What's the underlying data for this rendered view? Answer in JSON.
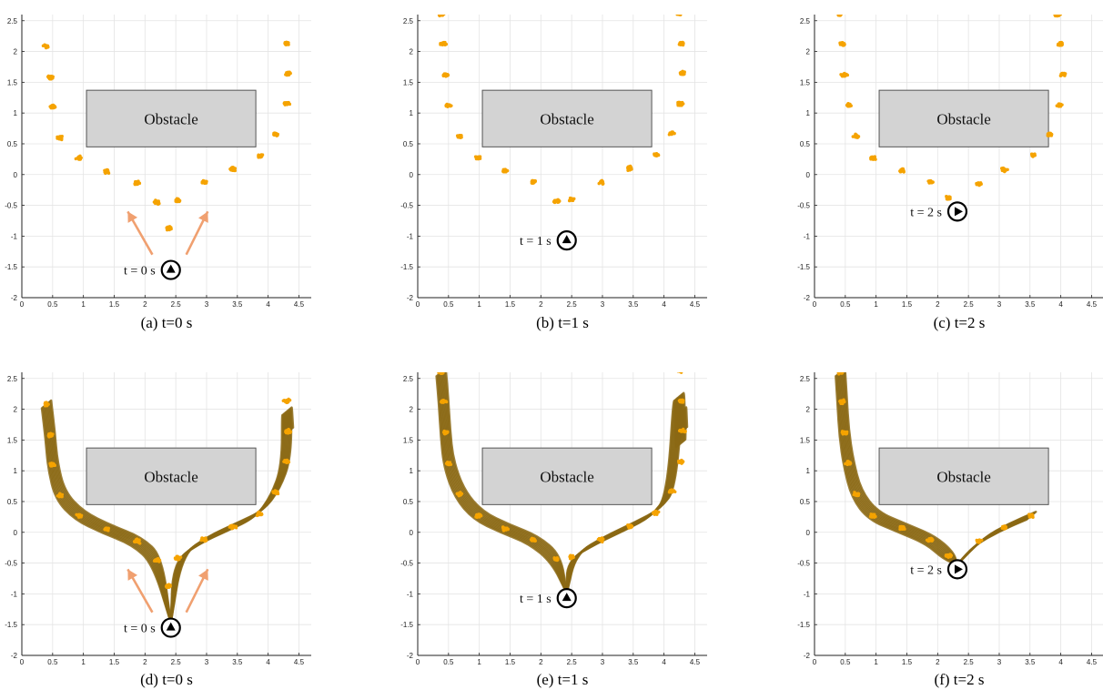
{
  "colors": {
    "particle": "#f5a300",
    "trajectory": "#8b6914",
    "obstacle_fill": "#d3d3d3",
    "obstacle_edge": "#555555",
    "arrow": "#f0a070",
    "grid": "#e4e4e4",
    "axis": "#222222"
  },
  "panels": [
    {
      "caption": "(a)  t=0 s",
      "time_label": "t = 0 s",
      "obstacle_label": "Obstacle"
    },
    {
      "caption": "(b)  t=1 s",
      "time_label": "t = 1 s",
      "obstacle_label": "Obstacle"
    },
    {
      "caption": "(c)  t=2 s",
      "time_label": "t = 2 s",
      "obstacle_label": "Obstacle"
    },
    {
      "caption": "(d)  t=0 s",
      "time_label": "t = 0 s",
      "obstacle_label": "Obstacle"
    },
    {
      "caption": "(e)  t=1 s",
      "time_label": "t = 1 s",
      "obstacle_label": "Obstacle"
    },
    {
      "caption": "(f)  t=2 s",
      "time_label": "t = 2 s",
      "obstacle_label": "Obstacle"
    }
  ],
  "chart_data": [
    {
      "type": "scatter",
      "title": "(a)  t=0 s",
      "xlim": [
        0,
        4.7
      ],
      "ylim": [
        -2,
        2.6
      ],
      "xticks": [
        "0",
        "0.5",
        "1",
        "1.5",
        "2",
        "2.5",
        "3",
        "3.5",
        "4",
        "4.5"
      ],
      "yticks": [
        "-2",
        "-1.5",
        "-1",
        "-0.5",
        "0",
        "0.5",
        "1",
        "1.5",
        "2",
        "2.5"
      ],
      "grid": true,
      "obstacle": {
        "x": [
          1.05,
          3.8
        ],
        "y": [
          0.45,
          1.37
        ],
        "label": "Obstacle"
      },
      "robot": {
        "x": 2.42,
        "y": -1.55,
        "heading": "up",
        "label": "t = 0 s"
      },
      "arrows": [
        {
          "from": [
            2.12,
            -1.3
          ],
          "to": [
            1.72,
            -0.6
          ]
        },
        {
          "from": [
            2.67,
            -1.3
          ],
          "to": [
            3.02,
            -0.6
          ]
        }
      ],
      "trajectories": false,
      "particle_clusters": [
        [
          0.4,
          2.08
        ],
        [
          0.46,
          1.58
        ],
        [
          0.5,
          1.1
        ],
        [
          0.62,
          0.6
        ],
        [
          0.93,
          0.27
        ],
        [
          1.38,
          0.05
        ],
        [
          1.87,
          -0.14
        ],
        [
          2.2,
          -0.45
        ],
        [
          2.53,
          -0.42
        ],
        [
          2.96,
          -0.12
        ],
        [
          3.42,
          0.09
        ],
        [
          3.86,
          0.3
        ],
        [
          4.12,
          0.65
        ],
        [
          4.3,
          1.15
        ],
        [
          4.33,
          1.64
        ],
        [
          4.3,
          2.13
        ],
        [
          2.38,
          -0.87
        ]
      ]
    },
    {
      "type": "scatter",
      "title": "(b)  t=1 s",
      "xlim": [
        0,
        4.7
      ],
      "ylim": [
        -2,
        2.6
      ],
      "xticks": [
        "0",
        "0.5",
        "1",
        "1.5",
        "2",
        "2.5",
        "3",
        "3.5",
        "4",
        "4.5"
      ],
      "yticks": [
        "-2",
        "-1.5",
        "-1",
        "-0.5",
        "0",
        "0.5",
        "1",
        "1.5",
        "2",
        "2.5"
      ],
      "grid": true,
      "obstacle": {
        "x": [
          1.05,
          3.8
        ],
        "y": [
          0.45,
          1.37
        ],
        "label": "Obstacle"
      },
      "robot": {
        "x": 2.42,
        "y": -1.07,
        "heading": "up",
        "label": "t = 1 s"
      },
      "arrows": [],
      "trajectories": false,
      "particle_clusters": [
        [
          0.38,
          2.6
        ],
        [
          0.42,
          2.13
        ],
        [
          0.45,
          1.62
        ],
        [
          0.5,
          1.12
        ],
        [
          0.68,
          0.62
        ],
        [
          0.98,
          0.27
        ],
        [
          1.42,
          0.06
        ],
        [
          1.88,
          -0.12
        ],
        [
          2.25,
          -0.43
        ],
        [
          2.5,
          -0.4
        ],
        [
          2.98,
          -0.12
        ],
        [
          3.45,
          0.1
        ],
        [
          3.87,
          0.32
        ],
        [
          4.13,
          0.67
        ],
        [
          4.27,
          1.15
        ],
        [
          4.3,
          1.65
        ],
        [
          4.28,
          2.13
        ],
        [
          4.25,
          2.62
        ]
      ]
    },
    {
      "type": "scatter",
      "title": "(c)  t=2 s",
      "xlim": [
        0,
        4.7
      ],
      "ylim": [
        -2,
        2.6
      ],
      "xticks": [
        "0",
        "0.5",
        "1",
        "1.5",
        "2",
        "2.5",
        "3",
        "3.5",
        "4",
        "4.5"
      ],
      "yticks": [
        "-2",
        "-1.5",
        "-1",
        "-0.5",
        "0",
        "0.5",
        "1",
        "1.5",
        "2",
        "2.5"
      ],
      "grid": true,
      "obstacle": {
        "x": [
          1.05,
          3.8
        ],
        "y": [
          0.45,
          1.37
        ],
        "label": "Obstacle"
      },
      "robot": {
        "x": 2.32,
        "y": -0.6,
        "heading": "right",
        "label": "t = 2 s"
      },
      "arrows": [],
      "trajectories": false,
      "particle_clusters": [
        [
          0.4,
          2.6
        ],
        [
          0.45,
          2.12
        ],
        [
          0.48,
          1.62
        ],
        [
          0.55,
          1.13
        ],
        [
          0.68,
          0.62
        ],
        [
          0.95,
          0.27
        ],
        [
          1.42,
          0.07
        ],
        [
          1.88,
          -0.12
        ],
        [
          2.18,
          -0.38
        ],
        [
          2.67,
          -0.15
        ],
        [
          3.08,
          0.08
        ],
        [
          3.55,
          0.32
        ],
        [
          3.82,
          0.65
        ],
        [
          3.98,
          1.13
        ],
        [
          4.03,
          1.63
        ],
        [
          3.99,
          2.12
        ],
        [
          3.94,
          2.6
        ]
      ]
    },
    {
      "type": "scatter",
      "title": "(d)  t=0 s",
      "xlim": [
        0,
        4.7
      ],
      "ylim": [
        -2,
        2.6
      ],
      "xticks": [
        "0",
        "0.5",
        "1",
        "1.5",
        "2",
        "2.5",
        "3",
        "3.5",
        "4",
        "4.5"
      ],
      "yticks": [
        "-2",
        "-1.5",
        "-1",
        "-0.5",
        "0",
        "0.5",
        "1",
        "1.5",
        "2",
        "2.5"
      ],
      "grid": true,
      "obstacle": {
        "x": [
          1.05,
          3.8
        ],
        "y": [
          0.45,
          1.37
        ],
        "label": "Obstacle"
      },
      "robot": {
        "x": 2.42,
        "y": -1.55,
        "heading": "up",
        "label": "t = 0 s"
      },
      "arrows": [
        {
          "from": [
            2.12,
            -1.3
          ],
          "to": [
            1.72,
            -0.6
          ]
        },
        {
          "from": [
            2.67,
            -1.3
          ],
          "to": [
            3.02,
            -0.6
          ]
        }
      ],
      "trajectories": true,
      "particle_clusters": [
        [
          0.4,
          2.08
        ],
        [
          0.46,
          1.58
        ],
        [
          0.5,
          1.1
        ],
        [
          0.62,
          0.6
        ],
        [
          0.93,
          0.27
        ],
        [
          1.38,
          0.05
        ],
        [
          1.87,
          -0.14
        ],
        [
          2.2,
          -0.45
        ],
        [
          2.53,
          -0.42
        ],
        [
          2.96,
          -0.12
        ],
        [
          3.42,
          0.09
        ],
        [
          3.86,
          0.3
        ],
        [
          4.12,
          0.65
        ],
        [
          4.3,
          1.15
        ],
        [
          4.33,
          1.64
        ],
        [
          4.3,
          2.13
        ],
        [
          2.38,
          -0.87
        ]
      ]
    },
    {
      "type": "scatter",
      "title": "(e)  t=1 s",
      "xlim": [
        0,
        4.7
      ],
      "ylim": [
        -2,
        2.6
      ],
      "xticks": [
        "0",
        "0.5",
        "1",
        "1.5",
        "2",
        "2.5",
        "3",
        "3.5",
        "4",
        "4.5"
      ],
      "yticks": [
        "-2",
        "-1.5",
        "-1",
        "-0.5",
        "0",
        "0.5",
        "1",
        "1.5",
        "2",
        "2.5"
      ],
      "grid": true,
      "obstacle": {
        "x": [
          1.05,
          3.8
        ],
        "y": [
          0.45,
          1.37
        ],
        "label": "Obstacle"
      },
      "robot": {
        "x": 2.42,
        "y": -1.07,
        "heading": "up",
        "label": "t = 1 s"
      },
      "arrows": [],
      "trajectories": true,
      "particle_clusters": [
        [
          0.38,
          2.6
        ],
        [
          0.42,
          2.13
        ],
        [
          0.45,
          1.62
        ],
        [
          0.5,
          1.12
        ],
        [
          0.68,
          0.62
        ],
        [
          0.98,
          0.27
        ],
        [
          1.42,
          0.06
        ],
        [
          1.88,
          -0.12
        ],
        [
          2.25,
          -0.43
        ],
        [
          2.5,
          -0.4
        ],
        [
          2.98,
          -0.12
        ],
        [
          3.45,
          0.1
        ],
        [
          3.87,
          0.32
        ],
        [
          4.13,
          0.67
        ],
        [
          4.27,
          1.15
        ],
        [
          4.3,
          1.65
        ],
        [
          4.28,
          2.13
        ],
        [
          4.25,
          2.62
        ]
      ]
    },
    {
      "type": "scatter",
      "title": "(f)  t=2 s",
      "xlim": [
        0,
        4.7
      ],
      "ylim": [
        -2,
        2.6
      ],
      "xticks": [
        "0",
        "0.5",
        "1",
        "1.5",
        "2",
        "2.5",
        "3",
        "3.5",
        "4",
        "4.5"
      ],
      "yticks": [
        "-2",
        "-1.5",
        "-1",
        "-0.5",
        "0",
        "0.5",
        "1",
        "1.5",
        "2",
        "2.5"
      ],
      "grid": true,
      "obstacle": {
        "x": [
          1.05,
          3.8
        ],
        "y": [
          0.45,
          1.37
        ],
        "label": "Obstacle"
      },
      "robot": {
        "x": 2.32,
        "y": -0.6,
        "heading": "right",
        "label": "t = 2 s"
      },
      "arrows": [],
      "trajectories": true,
      "particle_clusters": [
        [
          0.42,
          2.6
        ],
        [
          0.45,
          2.12
        ],
        [
          0.48,
          1.62
        ],
        [
          0.55,
          1.13
        ],
        [
          0.68,
          0.62
        ],
        [
          0.95,
          0.27
        ],
        [
          1.42,
          0.07
        ],
        [
          1.88,
          -0.12
        ],
        [
          2.18,
          -0.38
        ],
        [
          2.67,
          -0.15
        ],
        [
          3.08,
          0.08
        ],
        [
          3.52,
          0.27
        ]
      ]
    }
  ]
}
